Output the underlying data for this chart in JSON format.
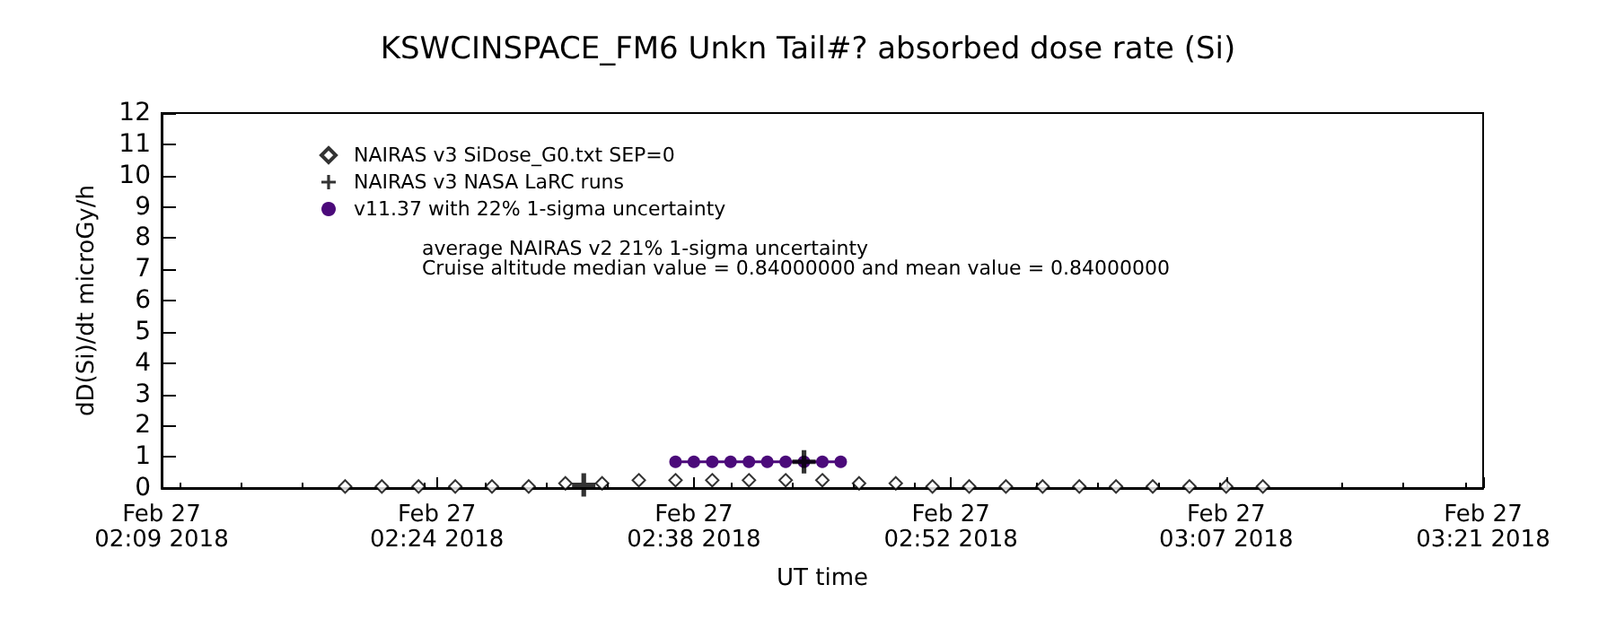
{
  "chart_data": {
    "type": "scatter",
    "title": "KSWCINSPACE_FM6 Unkn Tail#? absorbed dose rate (Si)",
    "xlabel": "UT time",
    "ylabel": "dD(Si)/dt microGy/h",
    "xlim": [
      "2018-02-27T02:09",
      "2018-02-27T03:21"
    ],
    "xticks": [
      {
        "value": "2018-02-27T02:09",
        "label": "Feb 27\n02:09 2018"
      },
      {
        "value": "2018-02-27T02:24",
        "label": "Feb 27\n02:24 2018"
      },
      {
        "value": "2018-02-27T02:38",
        "label": "Feb 27\n02:38 2018"
      },
      {
        "value": "2018-02-27T02:52",
        "label": "Feb 27\n02:52 2018"
      },
      {
        "value": "2018-02-27T03:07",
        "label": "Feb 27\n03:07 2018"
      },
      {
        "value": "2018-02-27T03:21",
        "label": "Feb 27\n03:21 2018"
      }
    ],
    "ylim": [
      0,
      12
    ],
    "yticks": [
      0,
      1,
      2,
      3,
      4,
      5,
      6,
      7,
      8,
      9,
      10,
      11,
      12
    ],
    "grid": false,
    "legend": "top left",
    "annotations": [
      "average NAIRAS v2 21% 1-sigma uncertainty",
      "Cruise altitude median value = 0.84000000 and mean value = 0.84000000"
    ],
    "series": [
      {
        "name": "NAIRAS v3 SiDose_G0.txt SEP=0",
        "marker": "diamond",
        "color": "#000000",
        "x": [
          "2018-02-27T02:19",
          "2018-02-27T02:21",
          "2018-02-27T02:23",
          "2018-02-27T02:25",
          "2018-02-27T02:27",
          "2018-02-27T02:29",
          "2018-02-27T02:31",
          "2018-02-27T02:33",
          "2018-02-27T02:35",
          "2018-02-27T02:37",
          "2018-02-27T02:39",
          "2018-02-27T02:41",
          "2018-02-27T02:43",
          "2018-02-27T02:45",
          "2018-02-27T02:47",
          "2018-02-27T02:49",
          "2018-02-27T02:51",
          "2018-02-27T02:53",
          "2018-02-27T02:55",
          "2018-02-27T02:57",
          "2018-02-27T02:59",
          "2018-02-27T03:01",
          "2018-02-27T03:03",
          "2018-02-27T03:05",
          "2018-02-27T03:07",
          "2018-02-27T03:09"
        ],
        "values": [
          0.05,
          0.05,
          0.05,
          0.05,
          0.05,
          0.05,
          0.15,
          0.15,
          0.25,
          0.25,
          0.25,
          0.25,
          0.25,
          0.25,
          0.15,
          0.15,
          0.05,
          0.05,
          0.05,
          0.05,
          0.05,
          0.05,
          0.05,
          0.05,
          0.05,
          0.05
        ]
      },
      {
        "name": "NAIRAS v3 NASA LaRC runs",
        "marker": "cross",
        "color": "#000000",
        "x": [
          "2018-02-27T02:32",
          "2018-02-27T02:44"
        ],
        "values": [
          0.1,
          0.84
        ]
      },
      {
        "name": "v11.37 with 22% 1-sigma uncertainty",
        "type": "line",
        "marker": "circle",
        "line_style": "solid",
        "color": "#4b0a7a",
        "x": [
          "2018-02-27T02:37",
          "2018-02-27T02:38",
          "2018-02-27T02:39",
          "2018-02-27T02:40",
          "2018-02-27T02:41",
          "2018-02-27T02:42",
          "2018-02-27T02:43",
          "2018-02-27T02:44",
          "2018-02-27T02:45",
          "2018-02-27T02:46"
        ],
        "values": [
          0.84,
          0.84,
          0.84,
          0.84,
          0.84,
          0.84,
          0.84,
          0.84,
          0.84,
          0.84
        ]
      }
    ]
  }
}
